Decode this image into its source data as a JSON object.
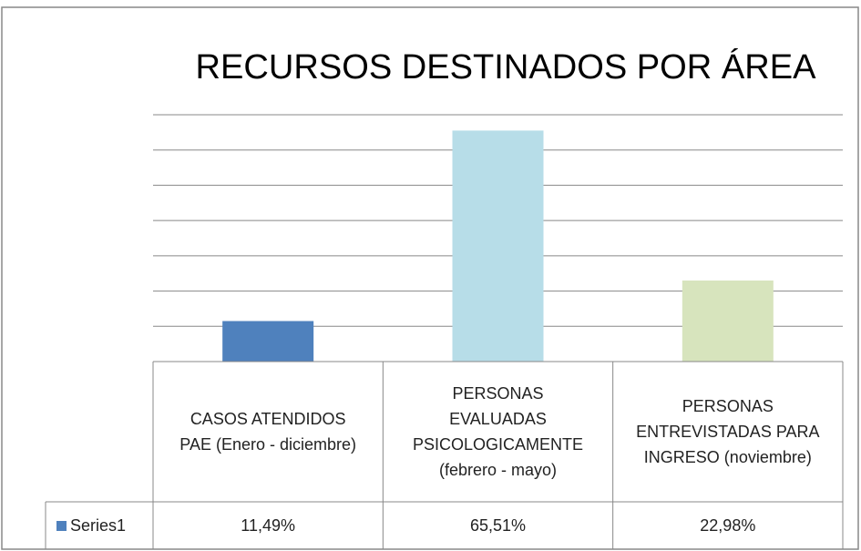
{
  "chart_data": {
    "type": "bar",
    "title": "RECURSOS DESTINADOS POR ÁREA",
    "categories": [
      "CASOS ATENDIDOS PAE (Enero - diciembre)",
      "PERSONAS EVALUADAS PSICOLOGICAMENTE (febrero - mayo)",
      "PERSONAS ENTREVISTADAS PARA INGRESO (noviembre)"
    ],
    "series": [
      {
        "name": "Series1",
        "color": "#4f81bd",
        "colors": [
          "#4f81bd",
          "#b7dde8",
          "#d7e4bd"
        ],
        "values": [
          11.49,
          65.51,
          22.98
        ],
        "value_labels": [
          "11,49%",
          "65,51%",
          "22,98%"
        ]
      }
    ],
    "ylim": [
      0,
      70
    ],
    "yticks": [
      0,
      10,
      20,
      30,
      40,
      50,
      60,
      70
    ],
    "grid": true
  }
}
